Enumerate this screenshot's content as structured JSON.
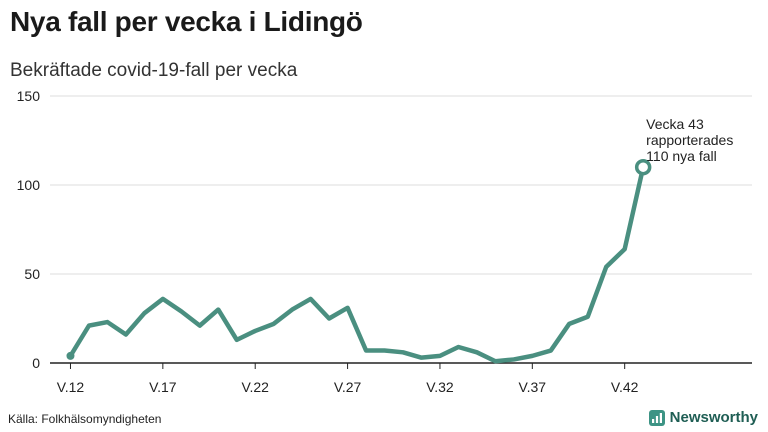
{
  "title": "Nya fall per vecka i Lidingö",
  "subtitle": "Bekräftade covid-19-fall per vecka",
  "source": "Källa: Folkhälsomyndigheten",
  "brand": {
    "name": "Newsworthy",
    "icon": "newsworthy-logo-icon",
    "color": "#3d9485"
  },
  "colors": {
    "line": "#4a8f80",
    "grid": "#dcdcdc",
    "axis": "#222222"
  },
  "annotation": {
    "lines": [
      "Vecka 43",
      "rapporterades",
      "110 nya fall"
    ]
  },
  "chart_data": {
    "type": "line",
    "title": "Nya fall per vecka i Lidingö",
    "subtitle": "Bekräftade covid-19-fall per vecka",
    "xlabel": "",
    "ylabel": "",
    "ylim": [
      0,
      150
    ],
    "yticks": [
      0,
      50,
      100,
      150
    ],
    "xlim": [
      11,
      49
    ],
    "xticks": [
      12,
      17,
      22,
      27,
      32,
      37,
      42
    ],
    "xtick_labels": [
      "V.12",
      "V.17",
      "V.22",
      "V.27",
      "V.32",
      "V.37",
      "V.42"
    ],
    "grid": true,
    "series": [
      {
        "x": [
          12,
          13,
          14,
          15,
          16,
          17,
          18,
          19,
          20,
          21,
          22,
          23,
          24,
          25,
          26,
          27,
          28,
          29,
          30,
          31,
          32,
          33,
          34,
          35,
          36,
          37,
          38,
          39,
          40,
          41,
          42,
          43
        ],
        "values": [
          4,
          21,
          23,
          16,
          28,
          36,
          29,
          21,
          30,
          13,
          18,
          22,
          30,
          36,
          25,
          31,
          7,
          7,
          6,
          3,
          4,
          9,
          6,
          1,
          2,
          4,
          7,
          22,
          26,
          54,
          64,
          110
        ]
      }
    ],
    "markers": [
      {
        "type": "start-dot",
        "x": 12,
        "y": 4
      },
      {
        "type": "end-circle",
        "x": 43,
        "y": 110
      }
    ]
  }
}
